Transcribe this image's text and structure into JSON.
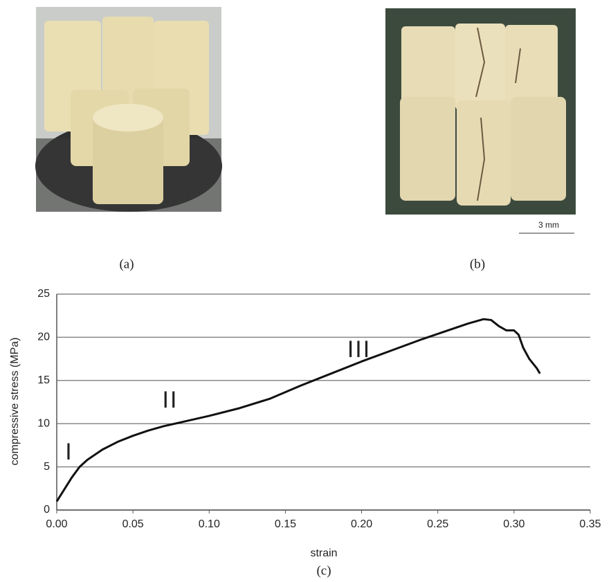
{
  "panels": {
    "a": "(a)",
    "b": "(b)",
    "scale_bar": "3 mm"
  },
  "chart_data": {
    "type": "line",
    "caption": "(c)",
    "x_label": "strain",
    "y_label": "compressive stress (MPa)",
    "annotations": [
      "I",
      "II",
      "III"
    ],
    "x": [
      0,
      0.005,
      0.01,
      0.015,
      0.02,
      0.03,
      0.04,
      0.05,
      0.06,
      0.07,
      0.08,
      0.1,
      0.12,
      0.14,
      0.16,
      0.18,
      0.2,
      0.22,
      0.24,
      0.26,
      0.27,
      0.28,
      0.285,
      0.29,
      0.295,
      0.3,
      0.303,
      0.306,
      0.31,
      0.315,
      0.317
    ],
    "series": [
      {
        "color": "#111111",
        "values": [
          1,
          2.4,
          3.8,
          5.0,
          5.8,
          7.0,
          7.9,
          8.6,
          9.2,
          9.7,
          10.1,
          10.9,
          11.8,
          12.9,
          14.4,
          15.8,
          17.2,
          18.5,
          19.8,
          21,
          21.6,
          22.1,
          22,
          21.3,
          20.8,
          20.8,
          20.3,
          18.8,
          17.5,
          16.4,
          15.8
        ]
      }
    ],
    "xlim": [
      0,
      0.35
    ],
    "xticks": [
      {
        "value": 0,
        "label": "0.00"
      },
      {
        "value": 0.05,
        "label": "0.05"
      },
      {
        "value": 0.1,
        "label": "0.10"
      },
      {
        "value": 0.15,
        "label": "0.15"
      },
      {
        "value": 0.2,
        "label": "0.20"
      },
      {
        "value": 0.25,
        "label": "0.25"
      },
      {
        "value": 0.3,
        "label": "0.30"
      },
      {
        "value": 0.35,
        "label": "0.35"
      }
    ],
    "ylim": [
      0,
      25
    ],
    "yticks": [
      0,
      5,
      10,
      15,
      20,
      25
    ],
    "grid": true
  }
}
